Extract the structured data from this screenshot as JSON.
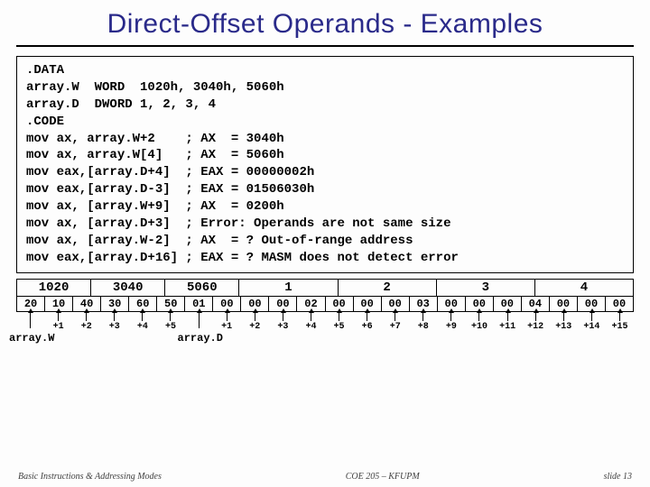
{
  "title": "Direct-Offset Operands - Examples",
  "code_lines": [
    ".DATA",
    "array.W  WORD  1020h, 3040h, 5060h",
    "array.D  DWORD 1, 2, 3, 4",
    ".CODE",
    "mov ax, array.W+2    ; AX  = 3040h",
    "mov ax, array.W[4]   ; AX  = 5060h",
    "mov eax,[array.D+4]  ; EAX = 00000002h",
    "mov eax,[array.D-3]  ; EAX = 01506030h",
    "mov ax, [array.W+9]  ; AX  = 0200h",
    "mov ax, [array.D+3]  ; Error: Operands are not same size",
    "mov ax, [array.W-2]  ; AX  = ? Out-of-range address",
    "mov eax,[array.D+16] ; EAX = ? MASM does not detect error"
  ],
  "word_cells": [
    "1020",
    "3040",
    "5060"
  ],
  "dword_cells": [
    "1",
    "2",
    "3",
    "4"
  ],
  "byte_cells": [
    "20",
    "10",
    "40",
    "30",
    "60",
    "50",
    "01",
    "00",
    "00",
    "00",
    "02",
    "00",
    "00",
    "00",
    "03",
    "00",
    "00",
    "00",
    "04",
    "00",
    "00",
    "00"
  ],
  "offsets": [
    "+1",
    "+2",
    "+3",
    "+4",
    "+5",
    "+1",
    "+2",
    "+3",
    "+4",
    "+5",
    "+6",
    "+7",
    "+8",
    "+9",
    "+10",
    "+11",
    "+12",
    "+13",
    "+14",
    "+15"
  ],
  "arrayW_label": "array.W",
  "arrayD_label": "array.D",
  "arrow_arrayW_idx": 0,
  "arrow_arrayD_idx": 6,
  "offset_start_idx": 1,
  "footer_left": "Basic Instructions & Addressing Modes",
  "footer_center": "COE 205 – KFUPM",
  "footer_right": "slide 13",
  "colors": {
    "title_color": "#2a2a8a",
    "border_color": "#000000",
    "background": "#fdfdfd"
  }
}
